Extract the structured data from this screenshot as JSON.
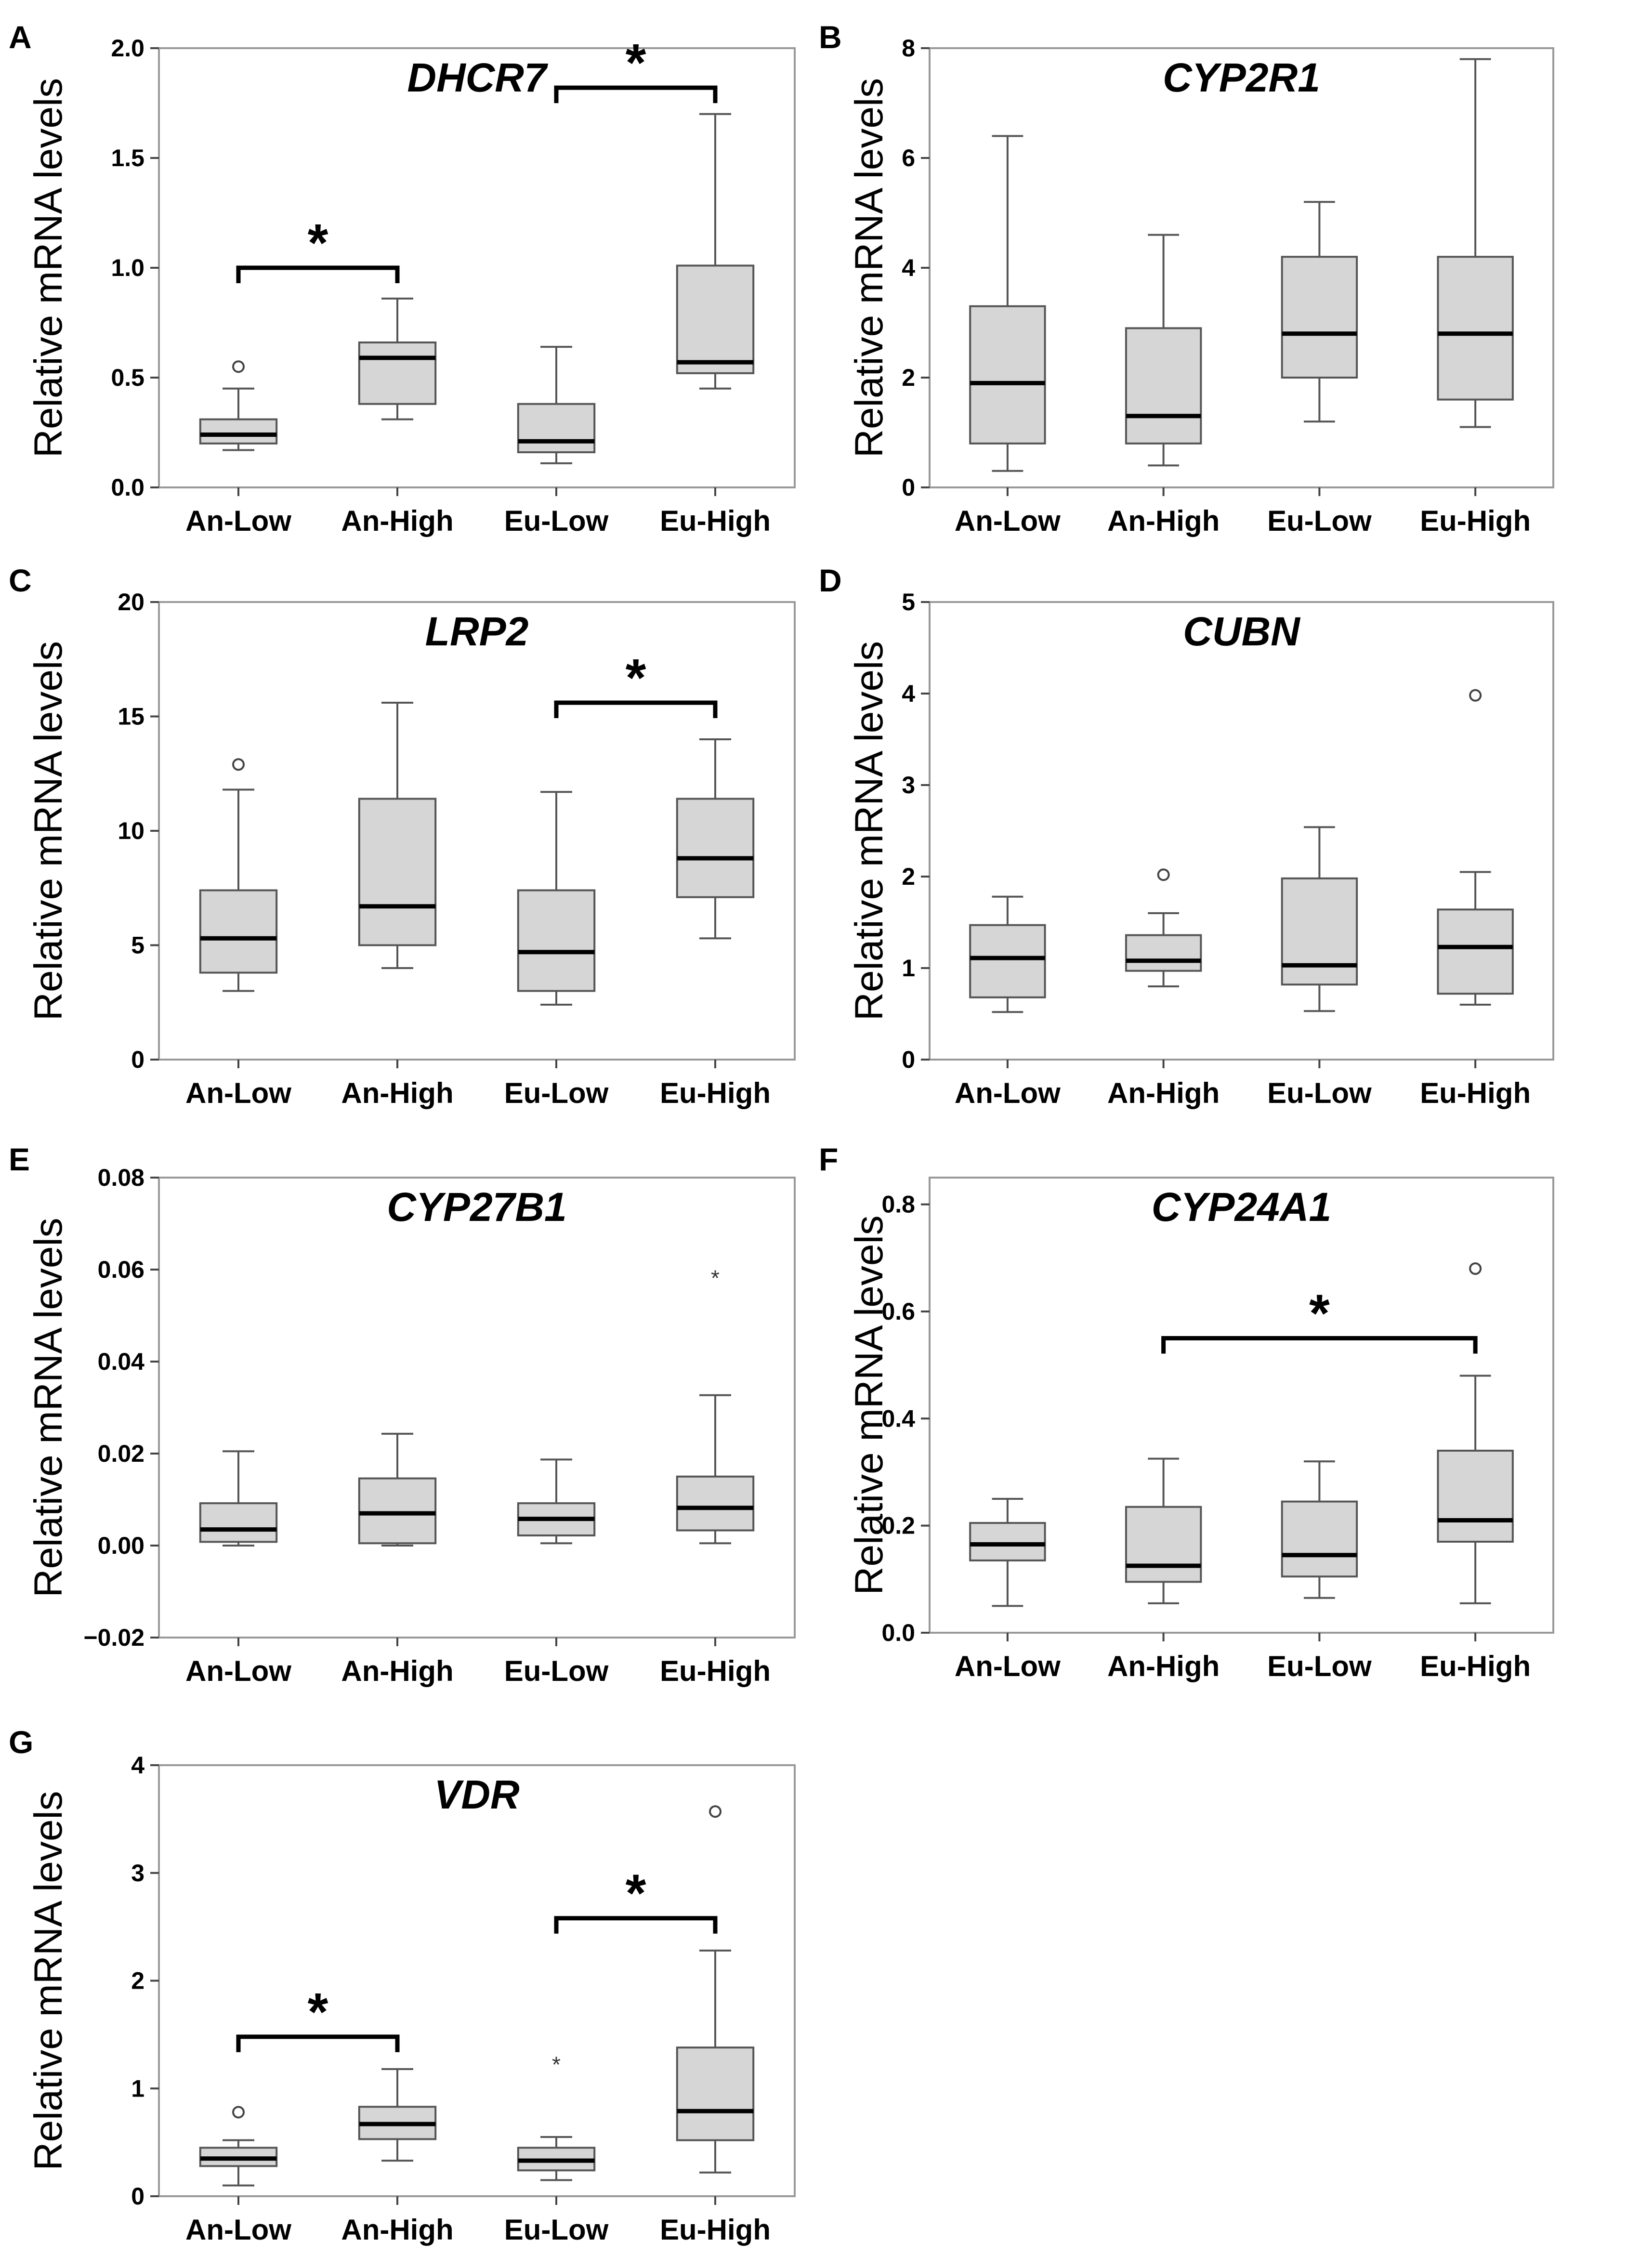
{
  "figure": {
    "y_axis_label": "Relative mRNA levels"
  },
  "colors": {
    "box_fill": "#d6d6d6",
    "box_stroke": "#555555",
    "median": "#000000",
    "frame": "#999999"
  },
  "chart_data": [
    {
      "panel": "A",
      "type": "box",
      "title": "DHCR7",
      "ylabel": "Relative mRNA levels",
      "categories": [
        "An-Low",
        "An-High",
        "Eu-Low",
        "Eu-High"
      ],
      "ylim": [
        0.0,
        2.0
      ],
      "yticks": [
        0.0,
        0.5,
        1.0,
        1.5,
        2.0
      ],
      "ytick_labels": [
        "0.0",
        "0.5",
        "1.0",
        "1.5",
        "2.0"
      ],
      "boxes": [
        {
          "min": 0.17,
          "q1": 0.2,
          "median": 0.24,
          "q3": 0.31,
          "max": 0.45,
          "outliers": [
            0.55
          ],
          "extremes": []
        },
        {
          "min": 0.31,
          "q1": 0.38,
          "median": 0.59,
          "q3": 0.66,
          "max": 0.86,
          "outliers": [],
          "extremes": []
        },
        {
          "min": 0.11,
          "q1": 0.16,
          "median": 0.21,
          "q3": 0.38,
          "max": 0.64,
          "outliers": [],
          "extremes": []
        },
        {
          "min": 0.45,
          "q1": 0.52,
          "median": 0.57,
          "q3": 1.01,
          "max": 1.7,
          "outliers": [],
          "extremes": []
        }
      ],
      "significance": [
        {
          "from": 0,
          "to": 1,
          "y": 1.0,
          "label": "*"
        },
        {
          "from": 2,
          "to": 3,
          "y": 1.82,
          "label": "*"
        }
      ]
    },
    {
      "panel": "B",
      "type": "box",
      "title": "CYP2R1",
      "ylabel": "Relative mRNA levels",
      "categories": [
        "An-Low",
        "An-High",
        "Eu-Low",
        "Eu-High"
      ],
      "ylim": [
        0,
        8
      ],
      "yticks": [
        0,
        2,
        4,
        6,
        8
      ],
      "ytick_labels": [
        "0",
        "2",
        "4",
        "6",
        "8"
      ],
      "boxes": [
        {
          "min": 0.3,
          "q1": 0.8,
          "median": 1.9,
          "q3": 3.3,
          "max": 6.4,
          "outliers": [],
          "extremes": []
        },
        {
          "min": 0.4,
          "q1": 0.8,
          "median": 1.3,
          "q3": 2.9,
          "max": 4.6,
          "outliers": [],
          "extremes": []
        },
        {
          "min": 1.2,
          "q1": 2.0,
          "median": 2.8,
          "q3": 4.2,
          "max": 5.2,
          "outliers": [],
          "extremes": []
        },
        {
          "min": 1.1,
          "q1": 1.6,
          "median": 2.8,
          "q3": 4.2,
          "max": 7.8,
          "outliers": [],
          "extremes": []
        }
      ],
      "significance": []
    },
    {
      "panel": "C",
      "type": "box",
      "title": "LRP2",
      "ylabel": "Relative mRNA levels",
      "categories": [
        "An-Low",
        "An-High",
        "Eu-Low",
        "Eu-High"
      ],
      "ylim": [
        0,
        20
      ],
      "yticks": [
        0,
        5,
        10,
        15,
        20
      ],
      "ytick_labels": [
        "0",
        "5",
        "10",
        "15",
        "20"
      ],
      "boxes": [
        {
          "min": 3.0,
          "q1": 3.8,
          "median": 5.3,
          "q3": 7.4,
          "max": 11.8,
          "outliers": [
            12.9
          ],
          "extremes": []
        },
        {
          "min": 4.0,
          "q1": 5.0,
          "median": 6.7,
          "q3": 11.4,
          "max": 15.6,
          "outliers": [],
          "extremes": []
        },
        {
          "min": 2.4,
          "q1": 3.0,
          "median": 4.7,
          "q3": 7.4,
          "max": 11.7,
          "outliers": [],
          "extremes": []
        },
        {
          "min": 5.3,
          "q1": 7.1,
          "median": 8.8,
          "q3": 11.4,
          "max": 14.0,
          "outliers": [],
          "extremes": []
        }
      ],
      "significance": [
        {
          "from": 2,
          "to": 3,
          "y": 15.6,
          "label": "*"
        }
      ]
    },
    {
      "panel": "D",
      "type": "box",
      "title": "CUBN",
      "ylabel": "Relative mRNA levels",
      "categories": [
        "An-Low",
        "An-High",
        "Eu-Low",
        "Eu-High"
      ],
      "ylim": [
        0,
        5
      ],
      "yticks": [
        0,
        1,
        2,
        3,
        4,
        5
      ],
      "ytick_labels": [
        "0",
        "1",
        "2",
        "3",
        "4",
        "5"
      ],
      "boxes": [
        {
          "min": 0.52,
          "q1": 0.68,
          "median": 1.11,
          "q3": 1.47,
          "max": 1.78,
          "outliers": [],
          "extremes": []
        },
        {
          "min": 0.8,
          "q1": 0.97,
          "median": 1.08,
          "q3": 1.36,
          "max": 1.6,
          "outliers": [
            2.02
          ],
          "extremes": []
        },
        {
          "min": 0.53,
          "q1": 0.82,
          "median": 1.03,
          "q3": 1.98,
          "max": 2.54,
          "outliers": [],
          "extremes": []
        },
        {
          "min": 0.6,
          "q1": 0.72,
          "median": 1.23,
          "q3": 1.64,
          "max": 2.05,
          "outliers": [
            3.98
          ],
          "extremes": []
        }
      ],
      "significance": []
    },
    {
      "panel": "E",
      "type": "box",
      "title": "CYP27B1",
      "ylabel": "Relative mRNA levels",
      "categories": [
        "An-Low",
        "An-High",
        "Eu-Low",
        "Eu-High"
      ],
      "ylim": [
        -0.02,
        0.08
      ],
      "yticks": [
        -0.02,
        0.0,
        0.02,
        0.04,
        0.06,
        0.08
      ],
      "ytick_labels": [
        "−0.02",
        "0.00",
        "0.02",
        "0.04",
        "0.06",
        "0.08"
      ],
      "boxes": [
        {
          "min": 0.0,
          "q1": 0.0008,
          "median": 0.0035,
          "q3": 0.0092,
          "max": 0.0205,
          "outliers": [],
          "extremes": []
        },
        {
          "min": 0.0,
          "q1": 0.0005,
          "median": 0.007,
          "q3": 0.0146,
          "max": 0.0243,
          "outliers": [],
          "extremes": []
        },
        {
          "min": 0.0005,
          "q1": 0.0022,
          "median": 0.0058,
          "q3": 0.0092,
          "max": 0.0187,
          "outliers": [],
          "extremes": []
        },
        {
          "min": 0.0005,
          "q1": 0.0033,
          "median": 0.0082,
          "q3": 0.015,
          "max": 0.0327,
          "outliers": [],
          "extremes": [
            0.0588
          ]
        }
      ],
      "significance": []
    },
    {
      "panel": "F",
      "type": "box",
      "title": "CYP24A1",
      "ylabel": "Relative mRNA levels",
      "categories": [
        "An-Low",
        "An-High",
        "Eu-Low",
        "Eu-High"
      ],
      "ylim": [
        0.0,
        0.85
      ],
      "yticks": [
        0.0,
        0.2,
        0.4,
        0.6,
        0.8
      ],
      "ytick_labels": [
        "0.0",
        "0.2",
        "0.4",
        "0.6",
        "0.8"
      ],
      "boxes": [
        {
          "min": 0.05,
          "q1": 0.135,
          "median": 0.165,
          "q3": 0.205,
          "max": 0.25,
          "outliers": [],
          "extremes": []
        },
        {
          "min": 0.055,
          "q1": 0.095,
          "median": 0.125,
          "q3": 0.235,
          "max": 0.325,
          "outliers": [],
          "extremes": []
        },
        {
          "min": 0.065,
          "q1": 0.105,
          "median": 0.145,
          "q3": 0.245,
          "max": 0.32,
          "outliers": [],
          "extremes": []
        },
        {
          "min": 0.055,
          "q1": 0.17,
          "median": 0.21,
          "q3": 0.34,
          "max": 0.48,
          "outliers": [
            0.68
          ],
          "extremes": []
        }
      ],
      "significance": [
        {
          "from": 1,
          "to": 3,
          "y": 0.55,
          "label": "*"
        }
      ]
    },
    {
      "panel": "G",
      "type": "box",
      "title": "VDR",
      "ylabel": "Relative mRNA levels",
      "categories": [
        "An-Low",
        "An-High",
        "Eu-Low",
        "Eu-High"
      ],
      "ylim": [
        0,
        4
      ],
      "yticks": [
        0,
        1,
        2,
        3,
        4
      ],
      "ytick_labels": [
        "0",
        "1",
        "2",
        "3",
        "4"
      ],
      "boxes": [
        {
          "min": 0.1,
          "q1": 0.28,
          "median": 0.35,
          "q3": 0.45,
          "max": 0.52,
          "outliers": [
            0.78
          ],
          "extremes": []
        },
        {
          "min": 0.33,
          "q1": 0.53,
          "median": 0.67,
          "q3": 0.83,
          "max": 1.18,
          "outliers": [],
          "extremes": []
        },
        {
          "min": 0.15,
          "q1": 0.24,
          "median": 0.33,
          "q3": 0.45,
          "max": 0.55,
          "outliers": [],
          "extremes": [
            1.25
          ]
        },
        {
          "min": 0.22,
          "q1": 0.52,
          "median": 0.79,
          "q3": 1.38,
          "max": 2.28,
          "outliers": [
            3.57
          ],
          "extremes": []
        }
      ],
      "significance": [
        {
          "from": 0,
          "to": 1,
          "y": 1.48,
          "label": "*"
        },
        {
          "from": 2,
          "to": 3,
          "y": 2.58,
          "label": "*"
        }
      ]
    }
  ]
}
